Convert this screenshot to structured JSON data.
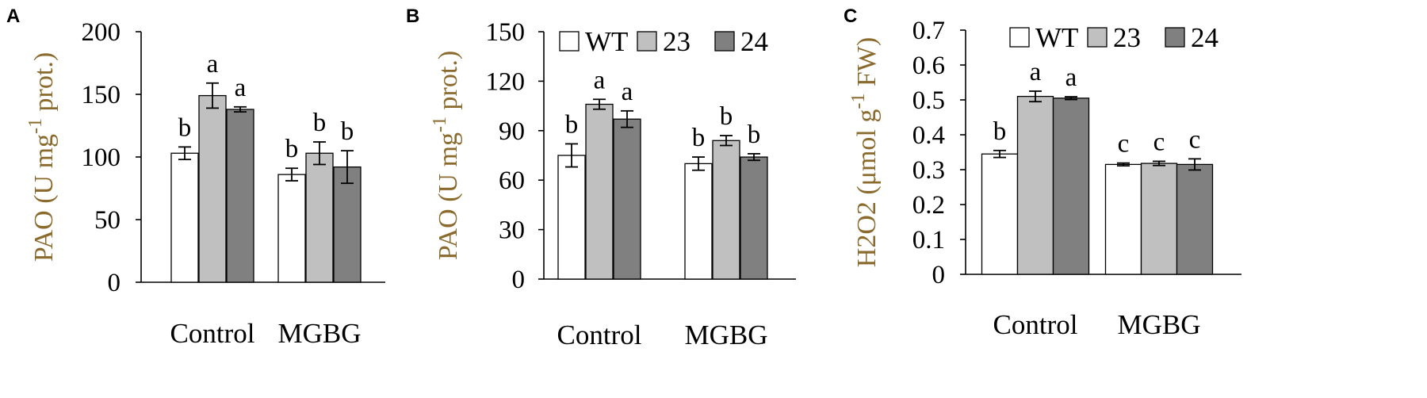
{
  "chart_data": [
    {
      "type": "bar",
      "panel": "A",
      "ylabel": "PAO (U mg-1 prot.)",
      "ylabel_main": "PAO (U mg",
      "ylabel_sup": "-1",
      "ylabel_tail": " prot.)",
      "ylim": [
        0,
        200
      ],
      "yticks": [
        0,
        50,
        100,
        150,
        200
      ],
      "categories": [
        "Control",
        "MGBG"
      ],
      "legend": false,
      "series": [
        {
          "name": "WT",
          "color": "#ffffff",
          "values": [
            103,
            86
          ],
          "errors": [
            5,
            5
          ],
          "labels": [
            "b",
            "b"
          ]
        },
        {
          "name": "23",
          "color": "#c0c0c0",
          "values": [
            149,
            103
          ],
          "errors": [
            10,
            9
          ],
          "labels": [
            "a",
            "b"
          ]
        },
        {
          "name": "24",
          "color": "#808080",
          "values": [
            138,
            92
          ],
          "errors": [
            2,
            13
          ],
          "labels": [
            "a",
            "b"
          ]
        }
      ]
    },
    {
      "type": "bar",
      "panel": "B",
      "ylabel": "PAO (U mg-1 prot.)",
      "ylabel_main": "PAO (U mg",
      "ylabel_sup": "-1",
      "ylabel_tail": " prot.)",
      "ylim": [
        0,
        150
      ],
      "yticks": [
        0,
        30,
        60,
        90,
        120,
        150
      ],
      "categories": [
        "Control",
        "MGBG"
      ],
      "legend": true,
      "legend_position": "top",
      "series": [
        {
          "name": "WT",
          "color": "#ffffff",
          "values": [
            75,
            70
          ],
          "errors": [
            7,
            4
          ],
          "labels": [
            "b",
            "b"
          ]
        },
        {
          "name": "23",
          "color": "#c0c0c0",
          "values": [
            106,
            84
          ],
          "errors": [
            3,
            3
          ],
          "labels": [
            "a",
            "b"
          ]
        },
        {
          "name": "24",
          "color": "#808080",
          "values": [
            97,
            74
          ],
          "errors": [
            5,
            2
          ],
          "labels": [
            "a",
            "b"
          ]
        }
      ]
    },
    {
      "type": "bar",
      "panel": "C",
      "ylabel": "H2O2 (μmol g-1 FW)",
      "ylabel_main": "H2O2 (μmol g",
      "ylabel_sup": "-1",
      "ylabel_tail": " FW)",
      "ylim": [
        0,
        0.7
      ],
      "yticks": [
        0,
        0.1,
        0.2,
        0.3,
        0.4,
        0.5,
        0.6,
        0.7
      ],
      "categories": [
        "Control",
        "MGBG"
      ],
      "legend": true,
      "legend_position": "top",
      "series": [
        {
          "name": "WT",
          "color": "#ffffff",
          "values": [
            0.345,
            0.315
          ],
          "errors": [
            0.01,
            0.004
          ],
          "labels": [
            "b",
            "c"
          ]
        },
        {
          "name": "23",
          "color": "#c0c0c0",
          "values": [
            0.51,
            0.318
          ],
          "errors": [
            0.015,
            0.006
          ],
          "labels": [
            "a",
            "c"
          ]
        },
        {
          "name": "24",
          "color": "#808080",
          "values": [
            0.505,
            0.315
          ],
          "errors": [
            0.004,
            0.016
          ],
          "labels": [
            "a",
            "c"
          ]
        }
      ]
    }
  ]
}
